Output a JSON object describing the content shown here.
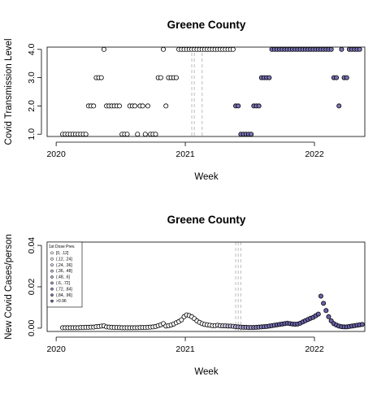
{
  "chart_data": [
    {
      "type": "scatter",
      "title": "Greene County",
      "xlabel": "Week",
      "ylabel": "Covid Transmission Level",
      "xlim": [
        2019.93,
        2022.39
      ],
      "ylim": [
        0.92,
        4.08
      ],
      "x_ticks": [
        {
          "value": 2020,
          "label": "2020"
        },
        {
          "value": 2021,
          "label": "2021"
        },
        {
          "value": 2022,
          "label": "2022"
        }
      ],
      "y_ticks": [
        {
          "value": 1,
          "label": "1.0"
        },
        {
          "value": 2,
          "label": "2.0"
        },
        {
          "value": 3,
          "label": "3.0"
        },
        {
          "value": 4,
          "label": "4.0"
        }
      ],
      "vlines": [
        2021.05,
        2021.07,
        2021.13
      ],
      "points_open": [
        [
          2020.05,
          1
        ],
        [
          2020.07,
          1
        ],
        [
          2020.09,
          1
        ],
        [
          2020.11,
          1
        ],
        [
          2020.13,
          1
        ],
        [
          2020.15,
          1
        ],
        [
          2020.17,
          1
        ],
        [
          2020.19,
          1
        ],
        [
          2020.21,
          1
        ],
        [
          2020.23,
          1
        ],
        [
          2020.25,
          2
        ],
        [
          2020.27,
          2
        ],
        [
          2020.29,
          2
        ],
        [
          2020.31,
          3
        ],
        [
          2020.33,
          3
        ],
        [
          2020.35,
          3
        ],
        [
          2020.37,
          4
        ],
        [
          2020.39,
          2
        ],
        [
          2020.41,
          2
        ],
        [
          2020.43,
          2
        ],
        [
          2020.45,
          2
        ],
        [
          2020.47,
          2
        ],
        [
          2020.49,
          2
        ],
        [
          2020.51,
          1
        ],
        [
          2020.53,
          1
        ],
        [
          2020.55,
          1
        ],
        [
          2020.57,
          2
        ],
        [
          2020.59,
          2
        ],
        [
          2020.61,
          2
        ],
        [
          2020.63,
          1
        ],
        [
          2020.65,
          2
        ],
        [
          2020.67,
          2
        ],
        [
          2020.69,
          1
        ],
        [
          2020.71,
          2
        ],
        [
          2020.73,
          1
        ],
        [
          2020.75,
          1
        ],
        [
          2020.77,
          1
        ],
        [
          2020.79,
          3
        ],
        [
          2020.81,
          3
        ],
        [
          2020.83,
          4
        ],
        [
          2020.85,
          2
        ],
        [
          2020.87,
          3
        ],
        [
          2020.89,
          3
        ],
        [
          2020.91,
          3
        ],
        [
          2020.93,
          3
        ],
        [
          2020.95,
          4
        ],
        [
          2020.97,
          4
        ],
        [
          2020.99,
          4
        ],
        [
          2021.01,
          4
        ],
        [
          2021.03,
          4
        ],
        [
          2021.05,
          4
        ],
        [
          2021.07,
          4
        ],
        [
          2021.09,
          4
        ],
        [
          2021.11,
          4
        ],
        [
          2021.13,
          4
        ],
        [
          2021.15,
          4
        ],
        [
          2021.17,
          4
        ],
        [
          2021.19,
          4
        ],
        [
          2021.21,
          4
        ],
        [
          2021.23,
          4
        ],
        [
          2021.25,
          4
        ],
        [
          2021.27,
          4
        ],
        [
          2021.29,
          4
        ],
        [
          2021.31,
          4
        ],
        [
          2021.33,
          4
        ],
        [
          2021.35,
          4
        ],
        [
          2021.37,
          4
        ]
      ],
      "points_filled": [
        [
          2021.39,
          2
        ],
        [
          2021.41,
          2
        ],
        [
          2021.43,
          1
        ],
        [
          2021.45,
          1
        ],
        [
          2021.47,
          1
        ],
        [
          2021.49,
          1
        ],
        [
          2021.51,
          1
        ],
        [
          2021.53,
          2
        ],
        [
          2021.55,
          2
        ],
        [
          2021.57,
          2
        ],
        [
          2021.59,
          3
        ],
        [
          2021.61,
          3
        ],
        [
          2021.63,
          3
        ],
        [
          2021.65,
          3
        ],
        [
          2021.67,
          4
        ],
        [
          2021.69,
          4
        ],
        [
          2021.71,
          4
        ],
        [
          2021.73,
          4
        ],
        [
          2021.75,
          4
        ],
        [
          2021.77,
          4
        ],
        [
          2021.79,
          4
        ],
        [
          2021.81,
          4
        ],
        [
          2021.83,
          4
        ],
        [
          2021.85,
          4
        ],
        [
          2021.87,
          4
        ],
        [
          2021.89,
          4
        ],
        [
          2021.91,
          4
        ],
        [
          2021.93,
          4
        ],
        [
          2021.95,
          4
        ],
        [
          2021.97,
          4
        ],
        [
          2021.99,
          4
        ],
        [
          2022.01,
          4
        ],
        [
          2022.03,
          4
        ],
        [
          2022.05,
          4
        ],
        [
          2022.07,
          4
        ],
        [
          2022.09,
          4
        ],
        [
          2022.11,
          4
        ],
        [
          2022.13,
          4
        ],
        [
          2022.15,
          3
        ],
        [
          2022.17,
          3
        ],
        [
          2022.19,
          2
        ],
        [
          2022.21,
          4
        ],
        [
          2022.23,
          3
        ],
        [
          2022.25,
          3
        ],
        [
          2022.27,
          4
        ],
        [
          2022.29,
          4
        ],
        [
          2022.31,
          4
        ],
        [
          2022.33,
          4
        ],
        [
          2022.35,
          4
        ]
      ]
    },
    {
      "type": "scatter",
      "title": "Greene County",
      "xlabel": "Week",
      "ylabel": "New Covid Cases/person",
      "xlim": [
        1999.93,
        2022.39
      ],
      "ylim": [
        -0.0016,
        0.0416
      ],
      "x_ticks": [
        {
          "value": 2020,
          "label": "2020"
        },
        {
          "value": 2021,
          "label": "2021"
        },
        {
          "value": 2022,
          "label": "2022"
        }
      ],
      "y_ticks": [
        {
          "value": 0,
          "label": "0.00"
        },
        {
          "value": 0.02,
          "label": "0.02"
        },
        {
          "value": 0.04,
          "label": "0.04"
        }
      ],
      "vlines": [
        2021.39,
        2021.41,
        2021.43
      ],
      "legend": {
        "title": "1st Dose Prev.",
        "position": "top-left",
        "entries": [
          "[0, .12]",
          "(.12, .24]",
          "(.24, .36]",
          "(.36, .48]",
          "(.48, .6]",
          "(.6, .72]",
          "(.72, .84]",
          "(.84, .96]",
          ">0.96"
        ],
        "colors": [
          "#ffffff",
          "#ecebf5",
          "#d9d7eb",
          "#c6c2e0",
          "#b3aed6",
          "#a09acc",
          "#8c85c2",
          "#7b74b6",
          "#6a63aa"
        ]
      },
      "cases_x_start": 2020.05,
      "cases_x_step": 0.02,
      "cases_values": [
        0.0002,
        0.0002,
        0.0002,
        0.0002,
        0.0002,
        0.0002,
        0.0002,
        0.0003,
        0.0003,
        0.0004,
        0.0004,
        0.0005,
        0.0005,
        0.0007,
        0.0008,
        0.001,
        0.0011,
        0.0006,
        0.0005,
        0.0004,
        0.0003,
        0.0003,
        0.0003,
        0.0002,
        0.0002,
        0.0002,
        0.0002,
        0.0002,
        0.0002,
        0.0002,
        0.0003,
        0.0003,
        0.0003,
        0.0004,
        0.0005,
        0.0006,
        0.0008,
        0.0012,
        0.0016,
        0.0022,
        0.001,
        0.0012,
        0.0015,
        0.002,
        0.0026,
        0.0032,
        0.004,
        0.0055,
        0.0064,
        0.0061,
        0.0055,
        0.0046,
        0.0035,
        0.0028,
        0.0022,
        0.0018,
        0.0016,
        0.0014,
        0.0012,
        0.0012,
        0.0014,
        0.0012,
        0.0011,
        0.0011,
        0.001,
        0.001,
        0.0009,
        0.0007,
        0.0006,
        0.0005,
        0.0004,
        0.0004,
        0.0003,
        0.0003,
        0.0003,
        0.0004,
        0.0005,
        0.0006,
        0.0007,
        0.0008,
        0.001,
        0.0012,
        0.0014,
        0.0016,
        0.0018,
        0.002,
        0.0022,
        0.0024,
        0.0022,
        0.002,
        0.0019,
        0.002,
        0.0024,
        0.003,
        0.0036,
        0.0042,
        0.0048,
        0.0052,
        0.006,
        0.0068,
        0.0155,
        0.012,
        0.0085,
        0.0055,
        0.0035,
        0.0022,
        0.0015,
        0.001,
        0.0007,
        0.0006,
        0.0006,
        0.0008,
        0.001,
        0.0012,
        0.0014,
        0.0016,
        0.0018
      ],
      "cases_color_index": [
        0,
        0,
        0,
        0,
        0,
        0,
        0,
        0,
        0,
        0,
        0,
        0,
        0,
        0,
        0,
        0,
        0,
        0,
        0,
        0,
        0,
        0,
        0,
        0,
        0,
        0,
        0,
        0,
        0,
        0,
        0,
        0,
        0,
        0,
        0,
        0,
        0,
        0,
        0,
        0,
        0,
        0,
        0,
        0,
        0,
        0,
        0,
        0,
        0,
        0,
        0,
        0,
        0,
        0,
        0,
        0,
        0,
        0,
        0,
        0,
        1,
        1,
        2,
        2,
        3,
        3,
        3,
        4,
        4,
        4,
        5,
        5,
        5,
        5,
        6,
        6,
        6,
        6,
        7,
        7,
        7,
        7,
        7,
        8,
        8,
        8,
        8,
        8,
        8,
        8,
        8,
        8,
        8,
        8,
        8,
        8,
        8,
        8,
        8,
        8,
        8,
        8,
        8,
        8,
        8,
        8,
        8,
        8,
        8,
        8,
        8,
        8,
        8,
        8,
        8,
        8,
        8
      ]
    }
  ]
}
